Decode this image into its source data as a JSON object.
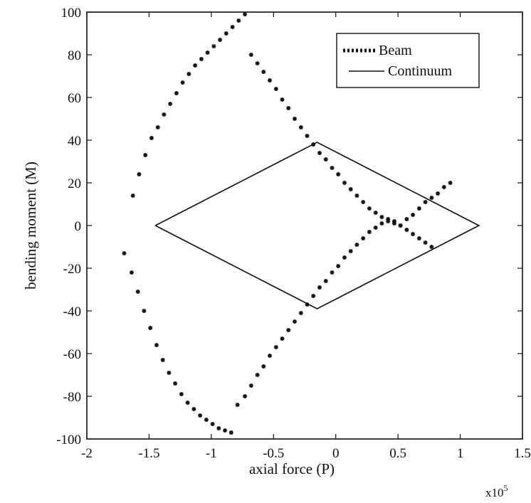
{
  "chart_data": {
    "type": "scatter",
    "xlabel": "axial force (P)",
    "ylabel": "bending moment (M)",
    "x_multiplier": "x10",
    "x_multiplier_exp": "5",
    "xlim": [
      -2,
      1.5
    ],
    "ylim": [
      -100,
      100
    ],
    "x_ticks": [
      "-2",
      "-1.5",
      "-1",
      "-0.5",
      "0",
      "0.5",
      "1",
      "1.5"
    ],
    "y_ticks": [
      "100",
      "80",
      "60",
      "40",
      "20",
      "0",
      "-20",
      "-40",
      "-60",
      "-80",
      "-100"
    ],
    "grid": false,
    "legend_position": "top-right",
    "series": [
      {
        "name": "Beam",
        "style": "asterisk-markers",
        "x": [
          -1.63,
          -1.58,
          -1.53,
          -1.48,
          -1.43,
          -1.38,
          -1.33,
          -1.28,
          -1.23,
          -1.18,
          -1.13,
          -1.08,
          -1.03,
          -0.98,
          -0.93,
          -0.88,
          -0.83,
          -0.78,
          -0.73,
          -0.68,
          -0.63,
          -0.58,
          -0.53,
          -0.48,
          -0.43,
          -0.38,
          -0.33,
          -0.28,
          -0.23,
          -0.18,
          -0.13,
          -0.08,
          -0.03,
          0.02,
          0.07,
          0.12,
          0.17,
          0.22,
          0.27,
          0.32,
          0.37,
          0.42,
          0.47,
          0.52,
          0.57,
          0.62,
          0.67,
          0.72,
          0.77,
          0.82,
          0.87,
          0.92,
          -1.7,
          -1.64,
          -1.59,
          -1.54,
          -1.49,
          -1.44,
          -1.39,
          -1.34,
          -1.29,
          -1.24,
          -1.19,
          -1.14,
          -1.09,
          -1.04,
          -0.99,
          -0.94,
          -0.89,
          -0.84,
          -0.79,
          -0.73,
          -0.68,
          -0.63,
          -0.58,
          -0.53,
          -0.48,
          -0.43,
          -0.38,
          -0.33,
          -0.28,
          -0.23,
          -0.18,
          -0.13,
          -0.08,
          -0.03,
          0.02,
          0.07,
          0.12,
          0.17,
          0.22,
          0.27,
          0.32,
          0.37,
          0.42,
          0.47,
          0.52,
          0.57,
          0.62,
          0.67,
          0.72,
          0.77
        ],
        "y": [
          14,
          24,
          33,
          41,
          46,
          52,
          57,
          62,
          67,
          71,
          75,
          78,
          81,
          84,
          87,
          90,
          93,
          96,
          99,
          80,
          76,
          72,
          68,
          64,
          59,
          55,
          50,
          46,
          42,
          38,
          34,
          31,
          27,
          24,
          20,
          17,
          14,
          11,
          8,
          6,
          4,
          2,
          1,
          0,
          3,
          5,
          8,
          11,
          13,
          15,
          18,
          20,
          -13,
          -22,
          -31,
          -40,
          -48,
          -56,
          -63,
          -69,
          -74,
          -79,
          -83,
          -86,
          -89,
          -91,
          -93,
          -95,
          -96,
          -97,
          -84,
          -80,
          -75,
          -70,
          -66,
          -61,
          -57,
          -53,
          -49,
          -45,
          -41,
          -37,
          -33,
          -29,
          -26,
          -22,
          -19,
          -15,
          -12,
          -9,
          -6,
          -3,
          -1,
          1,
          3,
          2,
          0,
          -2,
          -4,
          -6,
          -8,
          -10
        ]
      },
      {
        "name": "Continuum",
        "style": "solid-line",
        "x": [
          -1.45,
          -0.15,
          1.15,
          -0.15,
          -1.45
        ],
        "y": [
          0,
          39,
          0,
          -39,
          0
        ]
      }
    ]
  }
}
